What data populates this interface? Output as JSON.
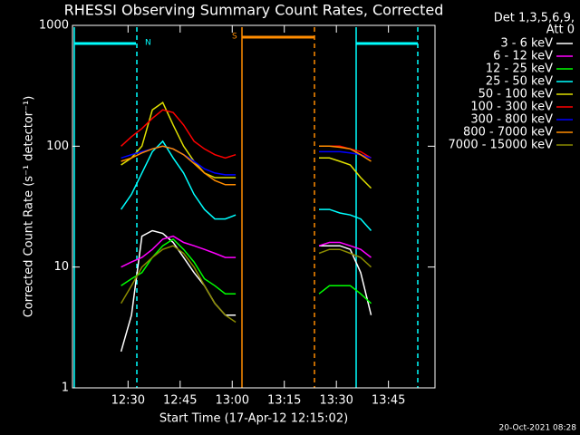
{
  "chart_data": {
    "type": "line",
    "title": "RHESSI Observing Summary Count Rates, Corrected",
    "xlabel": "Start Time (17-Apr-12 12:15:02)",
    "ylabel": "Corrected Count Rate (s⁻¹ detector⁻¹)",
    "legend_header": [
      "Det 1,3,5,6,9,",
      "Att 0"
    ],
    "annotations": [
      "N",
      "S"
    ],
    "footer": "20-Oct-2021 08:28",
    "log_y": true,
    "xlim": [
      734,
      838.4
    ],
    "ylim": [
      1,
      1000
    ],
    "yticks": [
      1,
      10,
      100,
      1000
    ],
    "xticks": [
      {
        "value": 750,
        "label": "12:30"
      },
      {
        "value": 765,
        "label": "12:45"
      },
      {
        "value": 780,
        "label": "13:00"
      },
      {
        "value": 795,
        "label": "13:15"
      },
      {
        "value": 810,
        "label": "13:30"
      },
      {
        "value": 825,
        "label": "13:45"
      }
    ],
    "x": [
      748,
      751,
      754,
      757,
      760,
      763,
      766,
      769,
      772,
      775,
      778,
      781,
      793,
      805,
      808,
      811,
      814,
      817,
      820
    ],
    "series": [
      {
        "name": "3 - 6 keV",
        "color": "#ffffff",
        "values": [
          2,
          4,
          18,
          20,
          19,
          16,
          12,
          9,
          7,
          5,
          4,
          4,
          null,
          15,
          15,
          15,
          14,
          9,
          4
        ]
      },
      {
        "name": "6 - 12 keV",
        "color": "#ff00ff",
        "values": [
          10,
          11,
          12,
          14,
          17,
          18,
          16,
          15,
          14,
          13,
          12,
          12,
          null,
          15,
          16,
          16,
          15,
          14,
          12
        ]
      },
      {
        "name": "12 - 25 keV",
        "color": "#00ff00",
        "values": [
          7,
          8,
          9,
          12,
          15,
          17,
          14,
          11,
          8,
          7,
          6,
          6,
          null,
          6,
          7,
          7,
          7,
          6,
          5
        ]
      },
      {
        "name": "25 - 50 keV",
        "color": "#00ffff",
        "values": [
          30,
          40,
          60,
          90,
          110,
          80,
          60,
          40,
          30,
          25,
          25,
          27,
          null,
          30,
          30,
          28,
          27,
          25,
          20
        ]
      },
      {
        "name": "50 - 100 keV",
        "color": "#e0e000",
        "values": [
          70,
          80,
          100,
          200,
          230,
          150,
          100,
          75,
          60,
          55,
          55,
          55,
          null,
          80,
          80,
          75,
          70,
          55,
          45
        ]
      },
      {
        "name": "100 - 300 keV",
        "color": "#ff0000",
        "values": [
          100,
          120,
          140,
          170,
          200,
          190,
          150,
          110,
          95,
          85,
          80,
          85,
          null,
          100,
          100,
          100,
          95,
          90,
          80
        ]
      },
      {
        "name": "300 - 800 keV",
        "color": "#0000ff",
        "values": [
          80,
          85,
          90,
          95,
          100,
          95,
          85,
          75,
          65,
          60,
          58,
          58,
          null,
          90,
          90,
          90,
          88,
          85,
          80
        ]
      },
      {
        "name": "800 - 7000 keV",
        "color": "#ff8c00",
        "values": [
          75,
          80,
          88,
          95,
          100,
          95,
          85,
          72,
          60,
          52,
          48,
          48,
          null,
          100,
          100,
          98,
          95,
          85,
          75
        ]
      },
      {
        "name": "7000 - 15000 keV",
        "color": "#8b8b00",
        "values": [
          5,
          7,
          10,
          12,
          14,
          15,
          13,
          10,
          7,
          5,
          4,
          3.5,
          null,
          13,
          14,
          14,
          13,
          12,
          10
        ]
      }
    ]
  }
}
